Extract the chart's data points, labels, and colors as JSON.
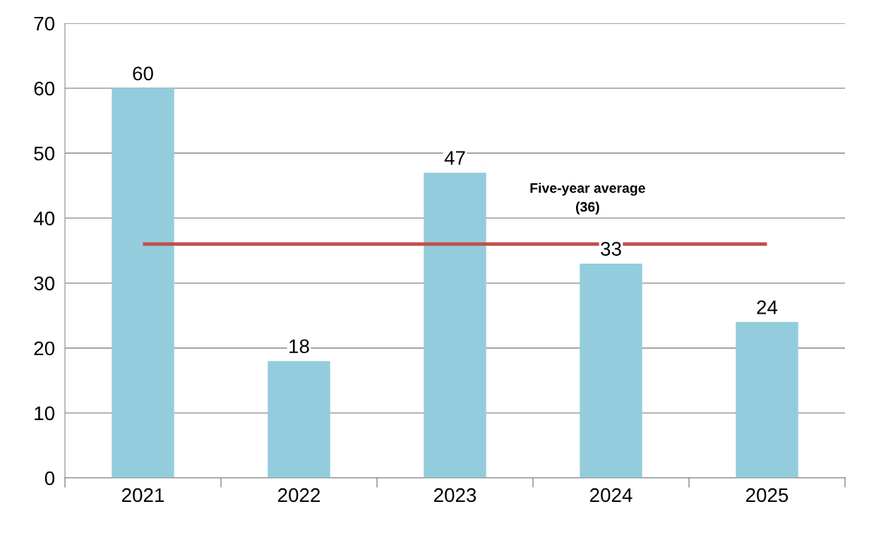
{
  "chart_data": {
    "type": "bar",
    "categories": [
      "2021",
      "2022",
      "2023",
      "2024",
      "2025"
    ],
    "values": [
      60,
      18,
      47,
      33,
      24
    ],
    "color": "#93cddd",
    "ylim": [
      0,
      70
    ],
    "yticks": [
      0,
      10,
      20,
      30,
      40,
      50,
      60,
      70
    ],
    "grid": "y",
    "data_labels": true,
    "ref_lines": [
      {
        "axis": "y",
        "value": 36,
        "label": "Five-year average\n(36)",
        "color": "#c0504d",
        "line_style": "solid"
      }
    ]
  }
}
